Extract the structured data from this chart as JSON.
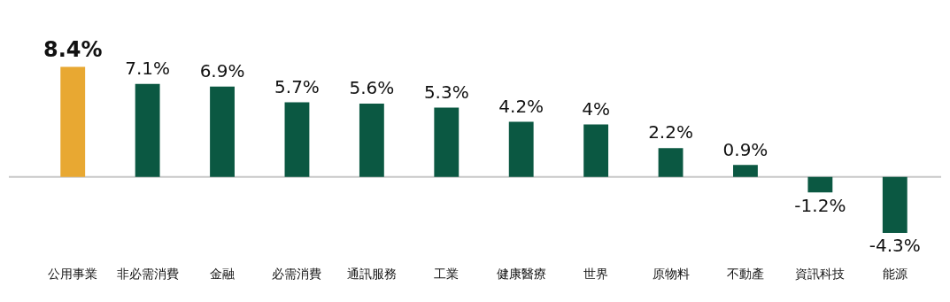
{
  "chart_data": {
    "type": "bar",
    "categories": [
      "公用事業",
      "非必需消費",
      "金融",
      "必需消費",
      "通訊服務",
      "工業",
      "健康醫療",
      "世界",
      "原物料",
      "不動產",
      "資訊科技",
      "能源"
    ],
    "values": [
      8.4,
      7.1,
      6.9,
      5.7,
      5.6,
      5.3,
      4.2,
      4,
      2.2,
      0.9,
      -1.2,
      -4.3
    ],
    "value_labels": [
      "8.4%",
      "7.1%",
      "6.9%",
      "5.7%",
      "5.6%",
      "5.3%",
      "4.2%",
      "4%",
      "2.2%",
      "0.9%",
      "-1.2%",
      "-4.3%"
    ],
    "colors": [
      "#e8a832",
      "#0b5842",
      "#0b5842",
      "#0b5842",
      "#0b5842",
      "#0b5842",
      "#0b5842",
      "#0b5842",
      "#0b5842",
      "#0b5842",
      "#0b5842",
      "#0b5842"
    ],
    "grid": false,
    "legend": false
  }
}
